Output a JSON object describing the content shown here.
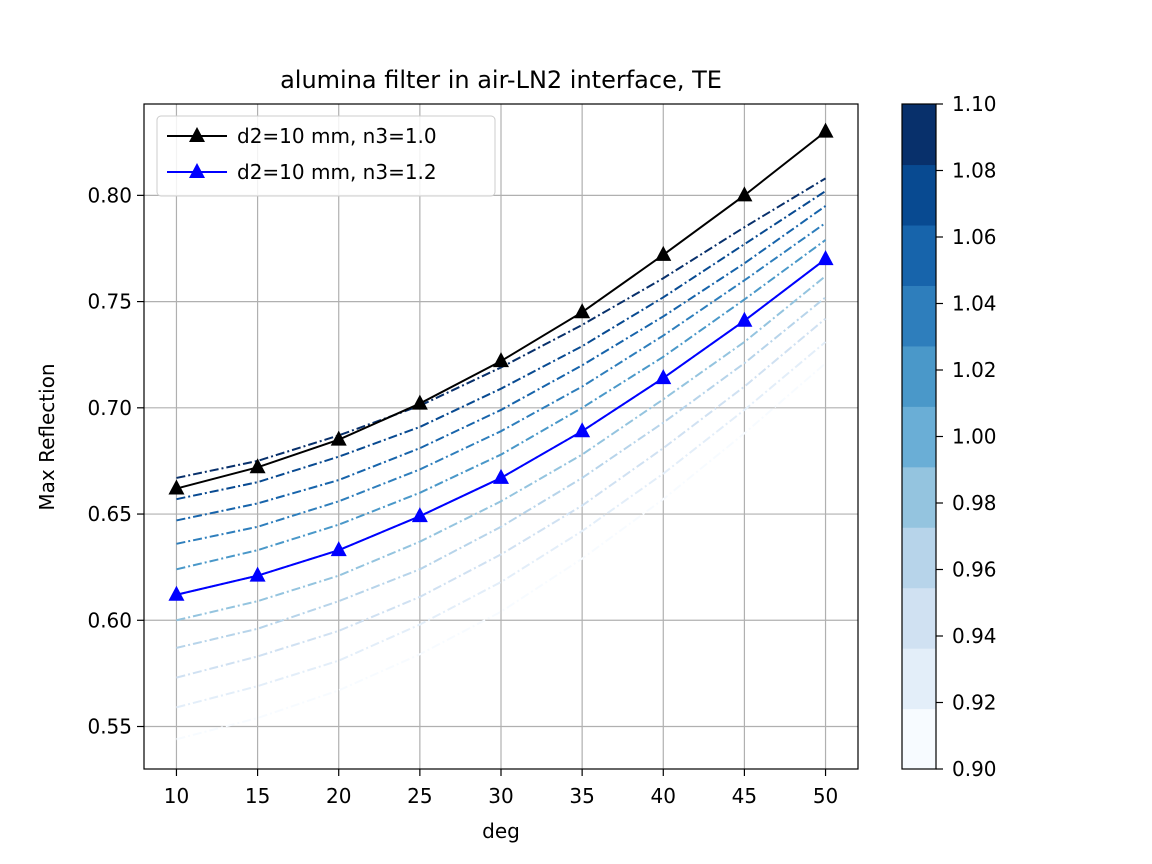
{
  "chart_data": {
    "type": "line",
    "title": "alumina filter in air-LN2 interface, TE",
    "xlabel": "deg",
    "ylabel": "Max Reflection",
    "xlim": [
      8.0,
      52.0
    ],
    "ylim": [
      0.53,
      0.843
    ],
    "xticks": [
      10,
      15,
      20,
      25,
      30,
      35,
      40,
      45,
      50
    ],
    "yticks": [
      0.55,
      0.6,
      0.65,
      0.7,
      0.75,
      0.8
    ],
    "grid": true,
    "legend_position": "upper-left",
    "x": [
      10,
      15,
      20,
      25,
      30,
      35,
      40,
      45,
      50
    ],
    "series": [
      {
        "name": "d2=10 mm, n3=1.0",
        "color": "#000000",
        "marker": "triangle",
        "style": "solid",
        "values": [
          0.662,
          0.672,
          0.685,
          0.702,
          0.722,
          0.745,
          0.772,
          0.8,
          0.83
        ]
      },
      {
        "name": "d2=10 mm, n3=1.2",
        "color": "#0000ff",
        "marker": "triangle",
        "style": "solid",
        "values": [
          0.612,
          0.621,
          0.633,
          0.649,
          0.667,
          0.689,
          0.714,
          0.741,
          0.77
        ]
      }
    ],
    "colormap_series": [
      {
        "n3": 0.9,
        "values": [
          0.544,
          0.554,
          0.567,
          0.584,
          0.604,
          0.629,
          0.657,
          0.688,
          0.721
        ]
      },
      {
        "n3": 0.92,
        "values": [
          0.559,
          0.569,
          0.581,
          0.598,
          0.618,
          0.642,
          0.669,
          0.699,
          0.731
        ]
      },
      {
        "n3": 0.94,
        "values": [
          0.573,
          0.583,
          0.595,
          0.611,
          0.631,
          0.654,
          0.681,
          0.71,
          0.742
        ]
      },
      {
        "n3": 0.96,
        "values": [
          0.587,
          0.596,
          0.609,
          0.624,
          0.644,
          0.667,
          0.693,
          0.721,
          0.752
        ]
      },
      {
        "n3": 0.98,
        "values": [
          0.6,
          0.609,
          0.621,
          0.637,
          0.656,
          0.678,
          0.704,
          0.731,
          0.762
        ]
      },
      {
        "n3": 1.0,
        "values": [
          0.612,
          0.621,
          0.633,
          0.649,
          0.667,
          0.689,
          0.714,
          0.741,
          0.77
        ]
      },
      {
        "n3": 1.02,
        "values": [
          0.624,
          0.633,
          0.645,
          0.66,
          0.678,
          0.7,
          0.724,
          0.751,
          0.779
        ]
      },
      {
        "n3": 1.04,
        "values": [
          0.636,
          0.644,
          0.656,
          0.671,
          0.689,
          0.71,
          0.734,
          0.76,
          0.787
        ]
      },
      {
        "n3": 1.06,
        "values": [
          0.647,
          0.655,
          0.666,
          0.681,
          0.699,
          0.72,
          0.743,
          0.768,
          0.795
        ]
      },
      {
        "n3": 1.08,
        "values": [
          0.657,
          0.665,
          0.677,
          0.691,
          0.709,
          0.729,
          0.752,
          0.777,
          0.802
        ]
      },
      {
        "n3": 1.1,
        "values": [
          0.667,
          0.675,
          0.687,
          0.701,
          0.719,
          0.739,
          0.761,
          0.785,
          0.808
        ]
      }
    ],
    "colorbar": {
      "min": 0.9,
      "max": 1.1,
      "ticks": [
        "0.90",
        "0.92",
        "0.94",
        "0.96",
        "0.98",
        "1.00",
        "1.02",
        "1.04",
        "1.06",
        "1.08",
        "1.10"
      ],
      "colors": [
        "#f7fbff",
        "#e3eef9",
        "#d0e1f2",
        "#b7d4ea",
        "#94c4df",
        "#6aaed6",
        "#4a98c9",
        "#2e7ebc",
        "#1764ab",
        "#084a91",
        "#08306b"
      ]
    }
  }
}
